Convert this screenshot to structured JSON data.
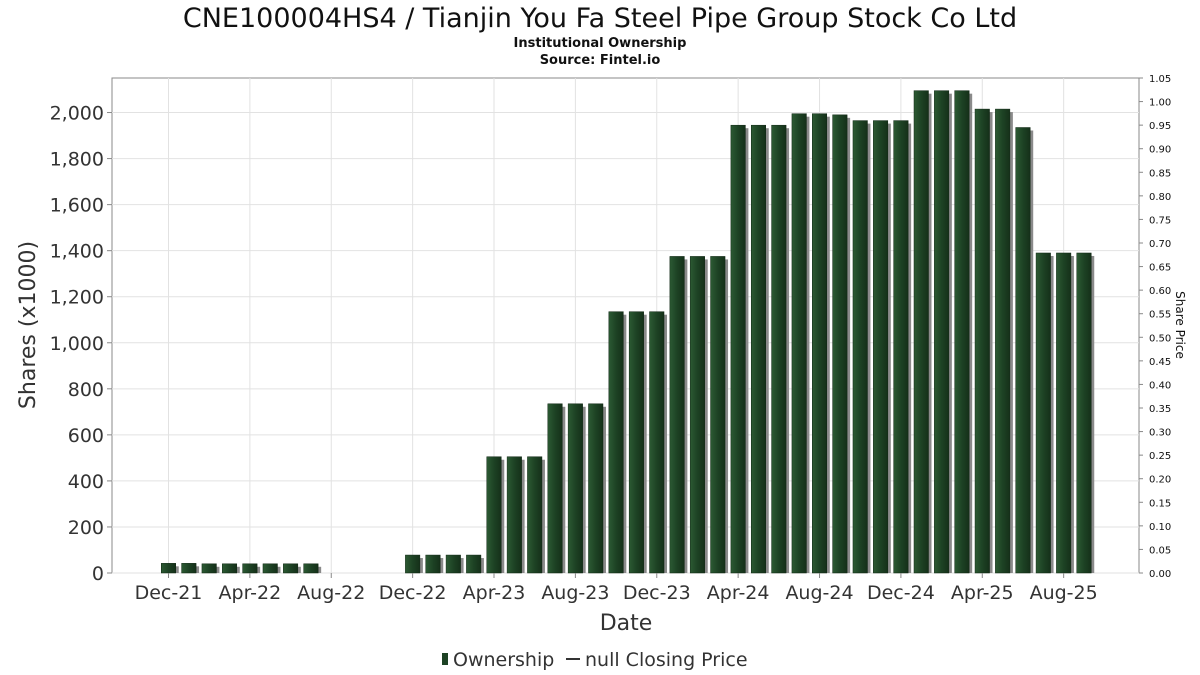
{
  "chart_data": {
    "type": "bar",
    "title": "CNE100004HS4 / Tianjin You Fa Steel Pipe Group Stock Co Ltd",
    "subtitle_lines": [
      "Institutional Ownership",
      "Source: Fintel.io"
    ],
    "xlabel": "Date",
    "ylabel": "Shares (x1000)",
    "y2label": "Share Price",
    "ylim": [
      0,
      2150
    ],
    "y2lim": [
      0,
      1.05
    ],
    "grid": true,
    "legend_position": "bottom-center",
    "x_tick_labels": [
      "Dec-21",
      "Apr-22",
      "Aug-22",
      "Dec-22",
      "Apr-23",
      "Aug-23",
      "Dec-23",
      "Apr-24",
      "Aug-24",
      "Dec-24",
      "Apr-25",
      "Aug-25"
    ],
    "y_tick_labels": [
      "0",
      "200",
      "400",
      "600",
      "800",
      "1,000",
      "1,200",
      "1,400",
      "1,600",
      "1,800",
      "2,000"
    ],
    "y2_tick_labels": [
      "0.00",
      "0.05",
      "0.10",
      "0.15",
      "0.20",
      "0.25",
      "0.30",
      "0.35",
      "0.40",
      "0.45",
      "0.50",
      "0.55",
      "0.60",
      "0.65",
      "0.70",
      "0.75",
      "0.80",
      "0.85",
      "0.90",
      "0.95",
      "1.00",
      "1.05"
    ],
    "series": [
      {
        "name": "Ownership",
        "color": "#1d4224",
        "values": [
          42,
          42,
          40,
          40,
          40,
          40,
          40,
          40,
          0,
          0,
          0,
          0,
          78,
          78,
          78,
          78,
          505,
          505,
          505,
          735,
          735,
          735,
          1135,
          1135,
          1135,
          1375,
          1375,
          1375,
          1945,
          1945,
          1945,
          1995,
          1995,
          1990,
          1965,
          1965,
          1965,
          2095,
          2095,
          2095,
          2015,
          2015,
          1935,
          1390,
          1390,
          1390
        ]
      },
      {
        "name": "null Closing Price",
        "values": []
      }
    ]
  }
}
